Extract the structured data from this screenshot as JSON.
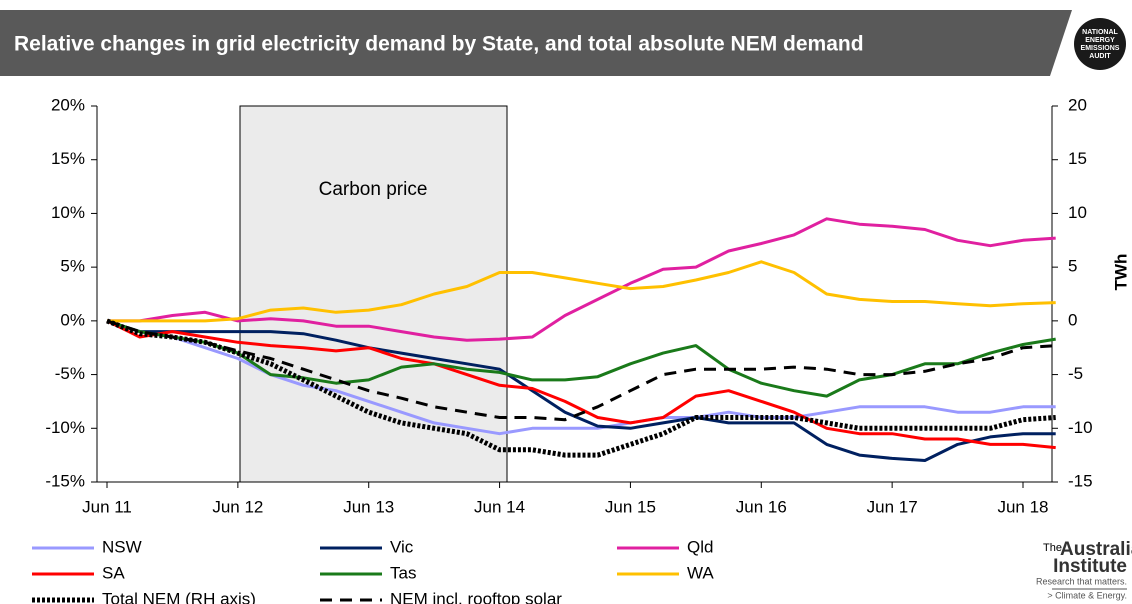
{
  "chart_data": {
    "type": "line",
    "title": "Relative changes in grid electricity demand  by State, and total absolute  NEM demand",
    "logo": [
      "NATIONAL",
      "ENERGY",
      "EMISSIONS",
      "AUDIT"
    ],
    "annotation": "Carbon price",
    "y2_label": "TWh",
    "footer_logo": {
      "name_top": "The",
      "name": "Australia",
      "name2": "Institute",
      "tagline": "Research that matters.",
      "program": "> Climate & Energy."
    },
    "categories": [
      "Jun 11",
      null,
      null,
      null,
      "Jun 12",
      null,
      null,
      null,
      "Jun 13",
      null,
      null,
      null,
      "Jun 14",
      null,
      null,
      null,
      "Jun 15",
      null,
      null,
      null,
      "Jun 16",
      null,
      null,
      null,
      "Jun 17",
      null,
      null,
      null,
      "Jun 18",
      null
    ],
    "ylim": [
      -15,
      20
    ],
    "yticks": [
      {
        "value": -15,
        "label": "-15%"
      },
      {
        "value": -10,
        "label": "-10%"
      },
      {
        "value": -5,
        "label": "-5%"
      },
      {
        "value": 0,
        "label": "0%"
      },
      {
        "value": 5,
        "label": "5%"
      },
      {
        "value": 10,
        "label": "10%"
      },
      {
        "value": 15,
        "label": "15%"
      },
      {
        "value": 20,
        "label": "20%"
      }
    ],
    "y2lim": [
      -15,
      20
    ],
    "y2ticks": [
      -15,
      -10,
      -5,
      0,
      5,
      10,
      15,
      20
    ],
    "grid": false,
    "series": [
      {
        "name": "NSW",
        "color": "#9999ff",
        "style": "solid",
        "values": [
          0,
          -1,
          -1.5,
          -2.5,
          -3.5,
          -5,
          -6,
          -6.5,
          -7.5,
          -8.5,
          -9.5,
          -10,
          -10.5,
          -10,
          -10,
          -10,
          -9.5,
          -9,
          -9,
          -8.5,
          -9,
          -9,
          -8.5,
          -8,
          -8,
          -8,
          -8.5,
          -8.5,
          -8,
          -8
        ]
      },
      {
        "name": "Vic",
        "color": "#002060",
        "style": "solid",
        "values": [
          0,
          -1,
          -1,
          -1,
          -1,
          -1,
          -1.2,
          -1.8,
          -2.5,
          -3,
          -3.5,
          -4,
          -4.5,
          -6.5,
          -8.5,
          -9.8,
          -10,
          -9.5,
          -9,
          -9.5,
          -9.5,
          -9.5,
          -11.5,
          -12.5,
          -12.8,
          -13,
          -11.5,
          -10.8,
          -10.5,
          -10.5
        ]
      },
      {
        "name": "Qld",
        "color": "#e020a0",
        "style": "solid",
        "values": [
          0,
          0,
          0.5,
          0.8,
          0,
          0.2,
          0,
          -0.5,
          -0.5,
          -1,
          -1.5,
          -1.8,
          -1.7,
          -1.5,
          0.5,
          2,
          3.5,
          4.8,
          5,
          6.5,
          7.2,
          8,
          9.5,
          9,
          8.8,
          8.5,
          7.5,
          7,
          7.5,
          7.7
        ]
      },
      {
        "name": "SA",
        "color": "#ff0000",
        "style": "solid",
        "values": [
          0,
          -1.5,
          -1,
          -1.5,
          -2,
          -2.3,
          -2.5,
          -2.8,
          -2.5,
          -3.5,
          -4,
          -5,
          -6,
          -6.3,
          -7.5,
          -9,
          -9.5,
          -9,
          -7,
          -6.5,
          -7.5,
          -8.5,
          -10,
          -10.5,
          -10.5,
          -11,
          -11,
          -11.5,
          -11.5,
          -11.8
        ]
      },
      {
        "name": "Tas",
        "color": "#1a7a1a",
        "style": "solid",
        "values": [
          0,
          -1,
          -1.5,
          -2,
          -3,
          -5,
          -5.3,
          -5.8,
          -5.5,
          -4.3,
          -4,
          -4.5,
          -4.8,
          -5.5,
          -5.5,
          -5.2,
          -4,
          -3,
          -2.3,
          -4.5,
          -5.8,
          -6.5,
          -7,
          -5.5,
          -5,
          -4,
          -4,
          -3,
          -2.2,
          -1.7
        ]
      },
      {
        "name": "WA",
        "color": "#ffc000",
        "style": "solid",
        "values": [
          0,
          0,
          0,
          0,
          0.2,
          1,
          1.2,
          0.8,
          1,
          1.5,
          2.5,
          3.2,
          4.5,
          4.5,
          4,
          3.5,
          3,
          3.2,
          3.8,
          4.5,
          5.5,
          4.5,
          2.5,
          2,
          1.8,
          1.8,
          1.6,
          1.4,
          1.6,
          1.7
        ]
      },
      {
        "name": "Total NEM (RH axis)",
        "color": "#000000",
        "style": "dotted",
        "axis": "y2",
        "values": [
          0,
          -1.2,
          -1.5,
          -2,
          -3,
          -4,
          -5.5,
          -7,
          -8.5,
          -9.5,
          -10,
          -10.5,
          -12,
          -12,
          -12.5,
          -12.5,
          -11.5,
          -10.5,
          -9,
          -9,
          -9,
          -9,
          -9.5,
          -10,
          -10,
          -10,
          -10,
          -10,
          -9.2,
          -9
        ]
      },
      {
        "name": "NEM incl. rooftop solar",
        "color": "#000000",
        "style": "dashed",
        "values": [
          0,
          -1,
          -1.5,
          -2,
          -2.8,
          -3.5,
          -4.5,
          -5.5,
          -6.5,
          -7.2,
          -8,
          -8.5,
          -9,
          -9,
          -9.2,
          -8,
          -6.5,
          -5,
          -4.5,
          -4.5,
          -4.5,
          -4.3,
          -4.5,
          -5,
          -5,
          -4.7,
          -4,
          -3.5,
          -2.5,
          -2.3
        ]
      }
    ]
  }
}
